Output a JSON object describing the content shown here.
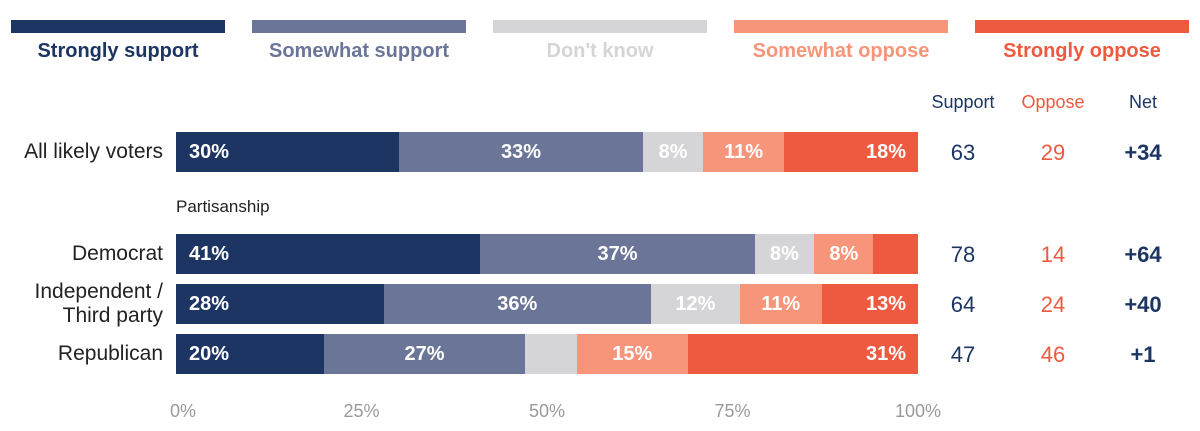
{
  "chart_data": {
    "type": "stacked-bar-horizontal",
    "categories": [
      "All likely voters",
      "Democrat",
      "Independent / Third party",
      "Republican"
    ],
    "annotation": "Partisanship",
    "xlim": [
      0,
      100
    ],
    "xticks": [
      {
        "value": 0,
        "label": "0%"
      },
      {
        "value": 25,
        "label": "25%"
      },
      {
        "value": 50,
        "label": "50%"
      },
      {
        "value": 75,
        "label": "75%"
      },
      {
        "value": 100,
        "label": "100%"
      }
    ],
    "series": [
      {
        "name": "Strongly support",
        "color": "#1c3563",
        "values": [
          30,
          41,
          28,
          20
        ],
        "value_labels": [
          "30%",
          "41%",
          "28%",
          "20%"
        ]
      },
      {
        "name": "Somewhat support",
        "color": "#6b7597",
        "values": [
          33,
          37,
          36,
          27
        ],
        "value_labels": [
          "33%",
          "37%",
          "36%",
          "27%"
        ]
      },
      {
        "name": "Don't know",
        "color": "#d5d5d7",
        "values": [
          8,
          8,
          12,
          7
        ],
        "value_labels": [
          "8%",
          "8%",
          "12%",
          null
        ]
      },
      {
        "name": "Somewhat oppose",
        "color": "#f7957a",
        "values": [
          11,
          8,
          11,
          15
        ],
        "value_labels": [
          "11%",
          "8%",
          "11%",
          "15%"
        ]
      },
      {
        "name": "Strongly oppose",
        "color": "#ee5a3f",
        "values": [
          18,
          6,
          13,
          31
        ],
        "value_labels": [
          "18%",
          null,
          "13%",
          "31%"
        ]
      }
    ],
    "summary": [
      {
        "name": "Support",
        "color": "#1c3563",
        "values": [
          63,
          78,
          64,
          47
        ]
      },
      {
        "name": "Oppose",
        "color": "#ee5a3f",
        "values": [
          29,
          14,
          24,
          46
        ]
      },
      {
        "name": "Net",
        "color": "#1c3563",
        "values": [
          34,
          64,
          40,
          1
        ],
        "value_labels": [
          "+34",
          "+64",
          "+40",
          "+1"
        ]
      }
    ]
  }
}
